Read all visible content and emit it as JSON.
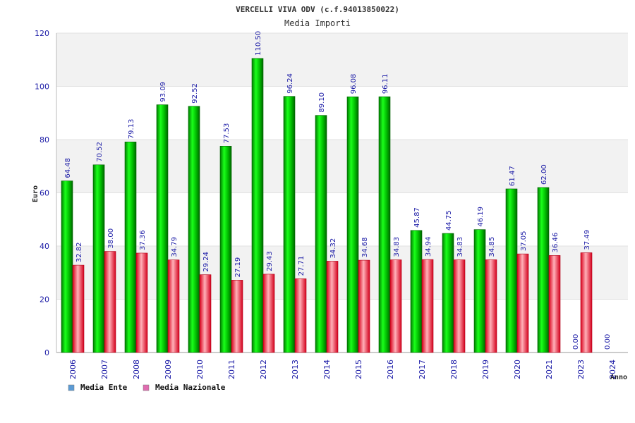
{
  "chart_data": {
    "type": "bar",
    "title": "VERCELLI VIVA ODV (c.f.94013850022)",
    "subtitle": "Media Importi",
    "ylabel": "Euro",
    "xlabel": "Anno",
    "ylim": [
      0,
      120
    ],
    "yticks": [
      0,
      20,
      40,
      60,
      80,
      100,
      120
    ],
    "grid": true,
    "legend_position": "bottom-left",
    "categories": [
      "2006",
      "2007",
      "2008",
      "2009",
      "2010",
      "2011",
      "2012",
      "2013",
      "2014",
      "2015",
      "2016",
      "2017",
      "2018",
      "2019",
      "2020",
      "2021",
      "2023",
      "2024"
    ],
    "series": [
      {
        "name": "Media Ente",
        "legend_color": "#5b9bd5",
        "bar_color": "#00c000",
        "values": [
          64.48,
          70.52,
          79.13,
          93.09,
          92.52,
          77.53,
          110.5,
          96.24,
          89.1,
          96.08,
          96.11,
          45.87,
          44.75,
          46.19,
          61.47,
          62.0,
          0.0,
          0.0
        ],
        "labels": [
          "64.48",
          "70.52",
          "79.13",
          "93.09",
          "92.52",
          "77.53",
          "110.50",
          "96.24",
          "89.10",
          "96.08",
          "96.11",
          "45.87",
          "44.75",
          "46.19",
          "61.47",
          "62.00",
          "0.00",
          "0.00"
        ]
      },
      {
        "name": "Media Nazionale",
        "legend_color": "#e06cb0",
        "bar_color": "#ee1c2e",
        "values": [
          32.82,
          38.0,
          37.36,
          34.79,
          29.24,
          27.19,
          29.43,
          27.71,
          34.32,
          34.68,
          34.83,
          34.94,
          34.83,
          34.85,
          37.05,
          36.46,
          37.49,
          null
        ],
        "labels": [
          "32.82",
          "38.00",
          "37.36",
          "34.79",
          "29.24",
          "27.19",
          "29.43",
          "27.71",
          "34.32",
          "34.68",
          "34.83",
          "34.94",
          "34.83",
          "34.85",
          "37.05",
          "36.46",
          "37.49",
          ""
        ]
      }
    ]
  }
}
